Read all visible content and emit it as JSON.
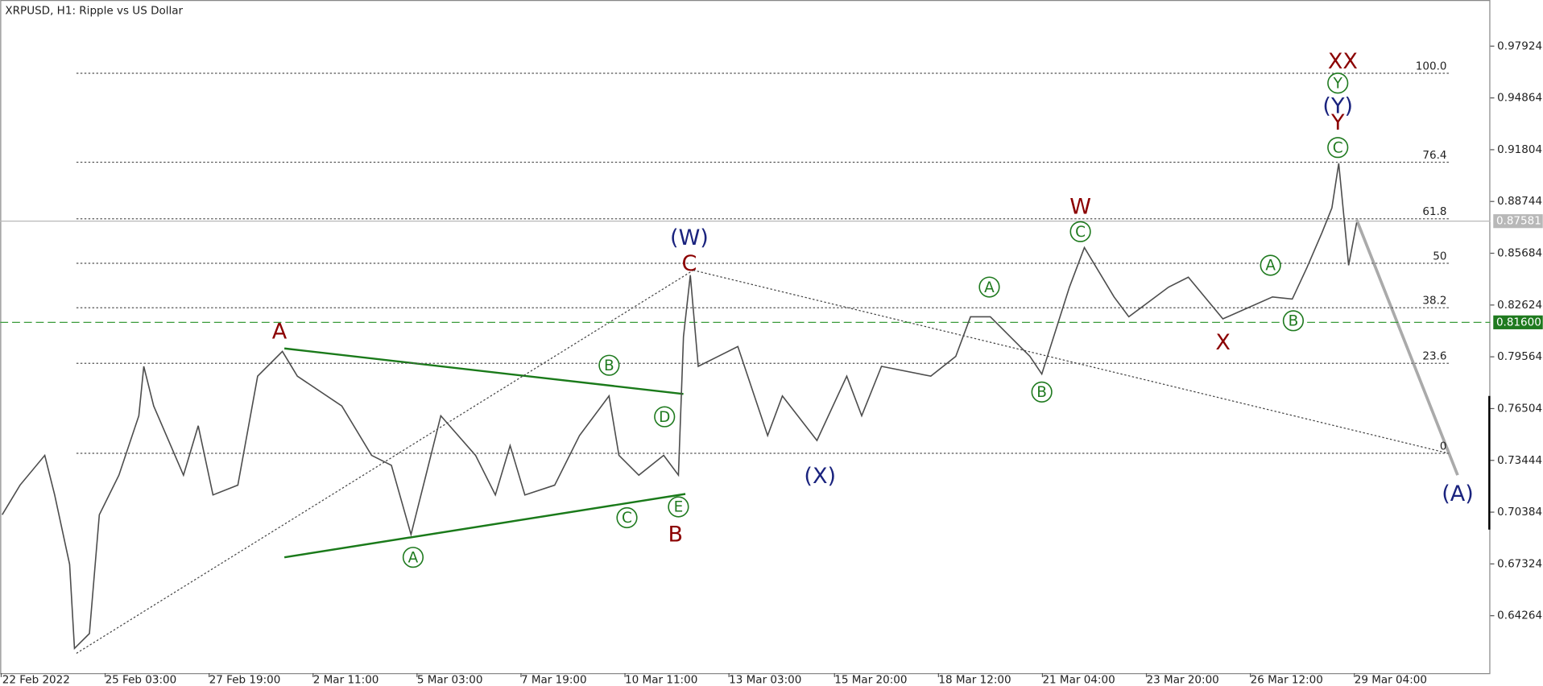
{
  "chart_data": {
    "type": "line",
    "title": "XRPUSD, H1:  Ripple vs US Dollar",
    "x": [
      11.6,
      22.6,
      37.8,
      43.9,
      53.1,
      56.1,
      65.3,
      71.4,
      83.5,
      95.7,
      98.8,
      104.9,
      123.2,
      132.3,
      141.4,
      156.7,
      168.9,
      184.1,
      193.3,
      220.7,
      239.0,
      251.2,
      263.3,
      272.5,
      281.6,
      303.0,
      315.2,
      324.3,
      333.4,
      351.7,
      367.0,
      385.2,
      391.3,
      403.5,
      418.8,
      427.9,
      431.0,
      435.2,
      440.1,
      464.5,
      482.8,
      491.9,
      513.2,
      531.5,
      540.7,
      552.9,
      583.3,
      598.6,
      607.7,
      619.9,
      644.3,
      651.6,
      668.6,
      677.8,
      696.1,
      705.2,
      729.6,
      741.8,
      763.1,
      793.6,
      805.8,
      814.9,
      824.1,
      830.2,
      834.4,
      840.5,
      845.4
    ],
    "values": [
      0.7023,
      0.7198,
      0.7374,
      0.714,
      0.673,
      0.6233,
      0.6321,
      0.7023,
      0.7257,
      0.7608,
      0.79,
      0.7666,
      0.7257,
      0.7549,
      0.714,
      0.7198,
      0.7842,
      0.7988,
      0.7842,
      0.7666,
      0.7374,
      0.7315,
      0.6906,
      0.7257,
      0.7608,
      0.7374,
      0.714,
      0.7432,
      0.714,
      0.7198,
      0.7491,
      0.7725,
      0.7374,
      0.7257,
      0.7374,
      0.7257,
      0.8076,
      0.8439,
      0.79,
      0.8017,
      0.7491,
      0.7725,
      0.7462,
      0.7842,
      0.7608,
      0.79,
      0.7842,
      0.7959,
      0.8193,
      0.8193,
      0.7959,
      0.7854,
      0.8368,
      0.8602,
      0.831,
      0.8193,
      0.8368,
      0.8427,
      0.8181,
      0.831,
      0.8298,
      0.8485,
      0.869,
      0.8836,
      0.91,
      0.8497,
      0.8749
    ],
    "color": "#4d4d4d",
    "xlim": [
      10.4,
      927.7
    ],
    "ylim": [
      0.6087,
      1.0065
    ],
    "yticks": [
      0.97924,
      0.94864,
      0.91804,
      0.88744,
      0.85684,
      0.82624,
      0.79564,
      0.76504,
      0.73444,
      0.70384,
      0.67324,
      0.64264
    ],
    "xticks": [
      {
        "value": 11,
        "label": "22 Feb 2022"
      },
      {
        "value": 75,
        "label": "25 Feb 03:00"
      },
      {
        "value": 139,
        "label": "27 Feb 19:00"
      },
      {
        "value": 203,
        "label": "2 Mar 11:00"
      },
      {
        "value": 267,
        "label": "5 Mar 03:00"
      },
      {
        "value": 331,
        "label": "7 Mar 19:00"
      },
      {
        "value": 395,
        "label": "10 Mar 11:00"
      },
      {
        "value": 459,
        "label": "13 Mar 03:00"
      },
      {
        "value": 524,
        "label": "15 Mar 20:00"
      },
      {
        "value": 588,
        "label": "18 Mar 12:00"
      },
      {
        "value": 652,
        "label": "21 Mar 04:00"
      },
      {
        "value": 716,
        "label": "23 Mar 20:00"
      },
      {
        "value": 780,
        "label": "26 Mar 12:00"
      },
      {
        "value": 844,
        "label": "29 Mar 04:00"
      }
    ],
    "current_price": 0.87581,
    "level_line": {
      "value": 0.816,
      "label": "0.81600"
    },
    "fib_levels": [
      {
        "label": "100.0",
        "value": 0.9632
      },
      {
        "label": "76.4",
        "value": 0.9106
      },
      {
        "label": "61.8",
        "value": 0.8772
      },
      {
        "label": "50",
        "value": 0.8509
      },
      {
        "label": "38.2",
        "value": 0.8246
      },
      {
        "label": "23.6",
        "value": 0.7918
      },
      {
        "label": "0",
        "value": 0.7386
      }
    ],
    "annotations": [
      "A",
      "(W)",
      "C",
      "B",
      "(X)",
      "W",
      "X",
      "XX",
      "Y",
      "(Y)",
      "(A)",
      "A",
      "B",
      "C",
      "D",
      "E",
      "A",
      "B",
      "C",
      "A",
      "B",
      "C",
      "Y"
    ]
  }
}
